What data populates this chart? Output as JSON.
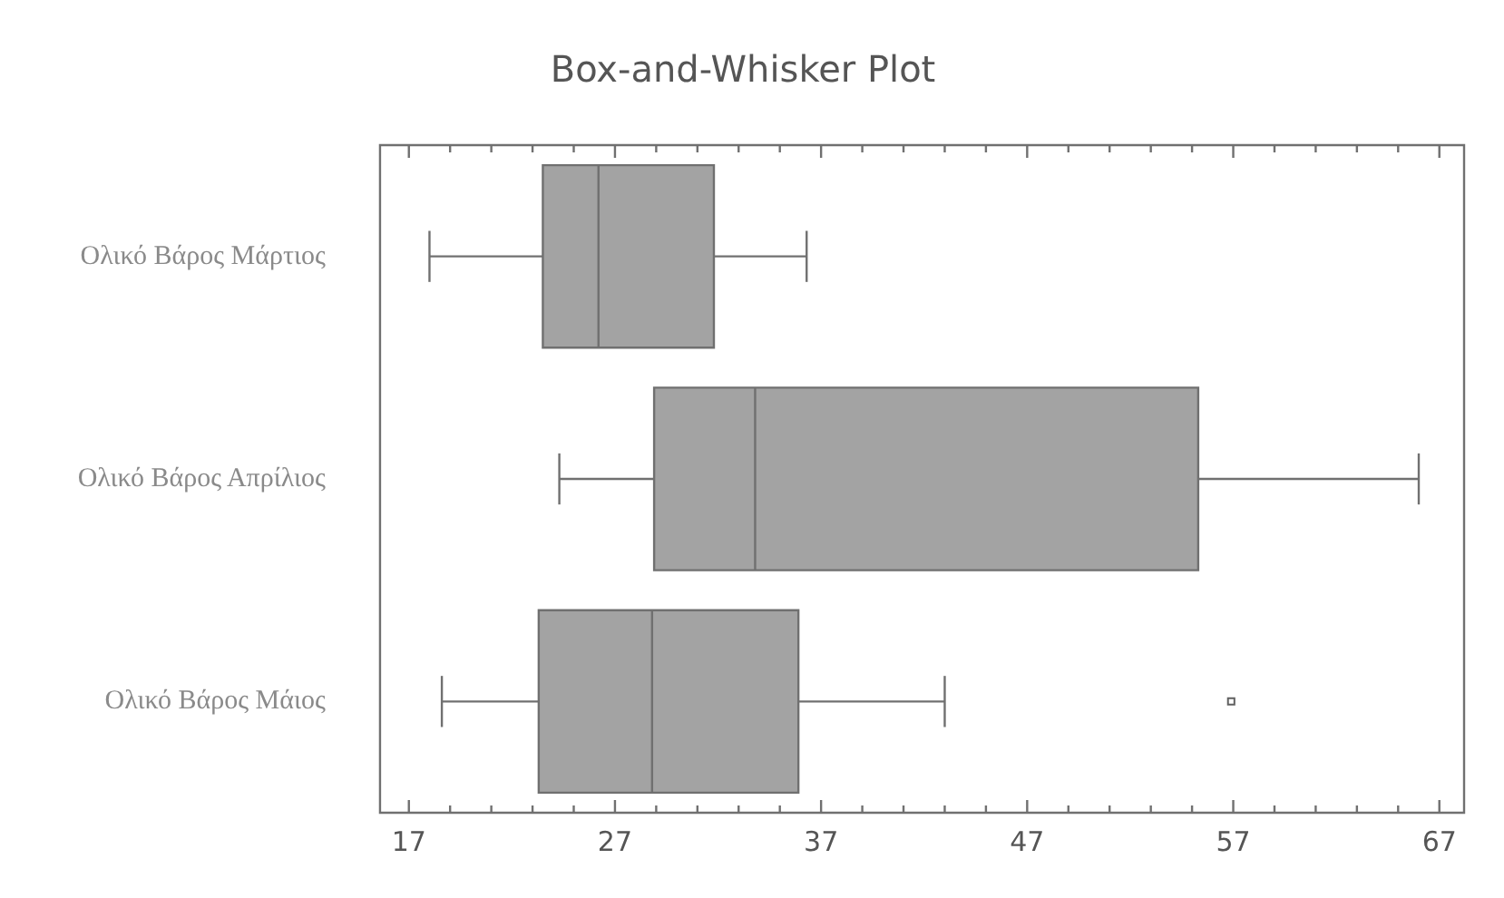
{
  "chart_data": {
    "type": "box",
    "title": "Box-and-Whisker Plot",
    "orientation": "horizontal",
    "color": "#a3a3a3",
    "categories": [
      "Ολικό Βάρος Μάρτιος",
      "Ολικό Βάρος Απρίλιος",
      "Ολικό Βάρος Μάιος"
    ],
    "boxes": [
      {
        "low": 18.0,
        "q1": 23.5,
        "median": 26.2,
        "q3": 31.8,
        "high": 36.3
      },
      {
        "low": 24.3,
        "q1": 28.9,
        "median": 33.8,
        "q3": 55.3,
        "high": 66.0
      },
      {
        "low": 18.6,
        "q1": 23.3,
        "median": 28.8,
        "q3": 35.9,
        "high": 43.0,
        "outliers": [
          56.9
        ]
      }
    ],
    "xlim": [
      15.6,
      68.2
    ],
    "xticks": [
      17,
      27,
      37,
      47,
      57,
      67
    ],
    "grid": false,
    "legend": false
  }
}
